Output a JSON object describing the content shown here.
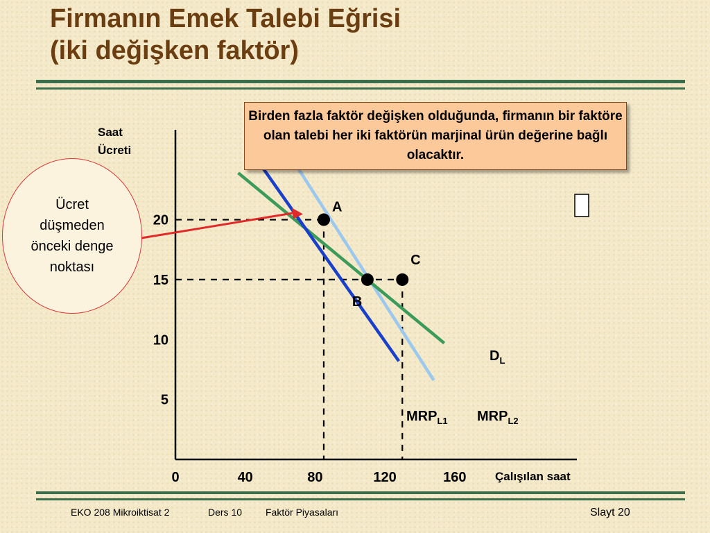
{
  "slide": {
    "title_line1": "Firmanın Emek Talebi Eğrisi",
    "title_line2": "(iki değişken faktör)",
    "callout_box": "Birden fazla faktör değişken olduğunda, firmanın bir faktöre olan talebi her iki faktörün marjinal ürün değerine bağlı olacaktır.",
    "circle_note": "Ücret düşmeden önceki denge noktası",
    "footer_course": "EKO 208 Mikroiktisat 2",
    "footer_lesson": "Ders 10",
    "footer_topic": "Faktör Piyasaları",
    "footer_slide": "Slayt 20",
    "box_icon": "empty-box-icon",
    "colors": {
      "title": "#6b3e12",
      "rule": "#3c6e4c",
      "arrow": "#e02a2a"
    }
  },
  "chart_data": {
    "type": "line",
    "xlabel": "Çalışılan saat",
    "ylabel_line1": "Saat",
    "ylabel_line2": "Ücreti",
    "x_ticks": [
      0,
      40,
      80,
      120,
      160
    ],
    "y_ticks": [
      5,
      10,
      15,
      20
    ],
    "xlim": [
      0,
      230
    ],
    "ylim": [
      0,
      27.5
    ],
    "series": [
      {
        "name": "MRP",
        "subscript": "L1",
        "color": "#1a3fc8",
        "points": [
          [
            40,
            26.4
          ],
          [
            128,
            8.2
          ]
        ]
      },
      {
        "name": "MRP",
        "subscript": "L2",
        "color": "#9cc8ee",
        "points": [
          [
            61,
            26.4
          ],
          [
            148,
            6.6
          ]
        ]
      },
      {
        "name": "D",
        "subscript": "L",
        "color": "#3c9a5a",
        "points": [
          [
            36,
            23.9
          ],
          [
            154,
            9.7
          ]
        ]
      }
    ],
    "points": [
      {
        "label": "A",
        "x": 85,
        "y": 20
      },
      {
        "label": "B",
        "x": 110,
        "y": 15
      },
      {
        "label": "C",
        "x": 130,
        "y": 15
      }
    ]
  }
}
